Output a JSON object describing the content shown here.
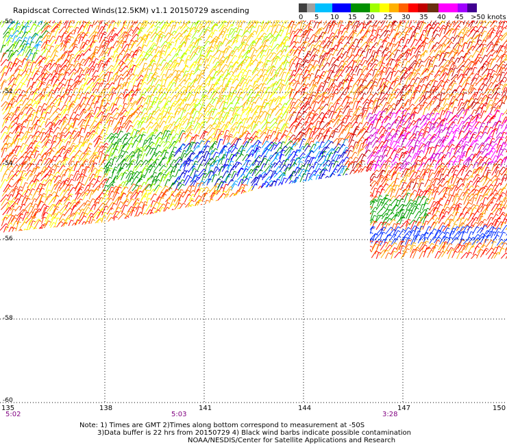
{
  "title": "Rapidscat Corrected Winds(12.5KM) v1.1 20150729 ascending",
  "colorbar": {
    "ticks": [
      "0",
      "5",
      "10",
      "15",
      "20",
      "25",
      "30",
      "35",
      "40",
      "45",
      ">50 knots"
    ],
    "colors": [
      "#404040",
      "#a0a0a0",
      "#00c0ff",
      "#0000ff",
      "#009000",
      "#a0ff00",
      "#ffff00",
      "#ffb000",
      "#ff6000",
      "#ff0000",
      "#c00000",
      "#6b3010",
      "#ff00ff",
      "#a000ff",
      "#400090"
    ]
  },
  "lat_labels": [
    "-50",
    "-52",
    "-54",
    "-56",
    "-58",
    "-60"
  ],
  "lon_labels": [
    "135",
    "138",
    "141",
    "144",
    "147",
    "150"
  ],
  "time_labels": [
    "5:02",
    "5:03",
    "3:28"
  ],
  "notes": [
    "Note: 1) Times are GMT 2)Times along bottom correspond to measurement at -50S",
    "3)Data buffer is 22 hrs from 20150729 4) Black wind barbs indicate possible contamination",
    "NOAA/NESDIS/Center for Satellite Applications and Research"
  ]
}
